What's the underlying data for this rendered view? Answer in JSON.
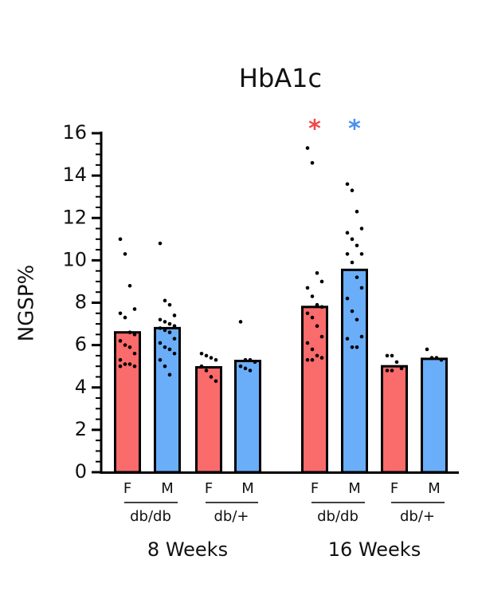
{
  "chart_data": {
    "type": "bar",
    "title": "HbA1c",
    "y_label": "NGSP%",
    "categories": [
      "F",
      "M",
      "F",
      "M",
      "F",
      "M",
      "F",
      "M"
    ],
    "groups": [
      "db/db",
      "db/+",
      "db/db",
      "db/+"
    ],
    "periods": [
      "8 Weeks",
      "16 Weeks"
    ],
    "values": [
      6.6,
      6.8,
      4.95,
      5.25,
      7.8,
      9.55,
      5.0,
      5.35
    ],
    "colors": [
      "#fa6b6b",
      "#6aaefa",
      "#fa6b6b",
      "#6aaefa",
      "#fa6b6b",
      "#6aaefa",
      "#fa6b6b",
      "#6aaefa"
    ],
    "points": [
      [
        11.0,
        10.3,
        8.8,
        7.7,
        7.5,
        7.3,
        6.6,
        6.5,
        6.2,
        6.0,
        5.9,
        5.6,
        5.3,
        5.1,
        5.1,
        5.0,
        5.0
      ],
      [
        10.8,
        8.1,
        7.9,
        7.4,
        7.2,
        7.1,
        7.0,
        6.9,
        6.8,
        6.7,
        6.6,
        6.3,
        6.1,
        5.9,
        5.8,
        5.6,
        5.3,
        5.0,
        4.6
      ],
      [
        5.6,
        5.5,
        5.4,
        5.3,
        5.0,
        4.8,
        4.5,
        4.3
      ],
      [
        7.1,
        5.3,
        5.3,
        5.2,
        5.0,
        4.9,
        4.8
      ],
      [
        15.3,
        14.6,
        9.4,
        9.0,
        8.7,
        8.3,
        7.9,
        7.8,
        7.5,
        7.3,
        6.9,
        6.4,
        6.1,
        5.8,
        5.5,
        5.4,
        5.3,
        5.3
      ],
      [
        13.6,
        13.3,
        12.3,
        11.5,
        11.3,
        11.0,
        10.7,
        10.3,
        10.3,
        9.9,
        9.2,
        8.7,
        8.2,
        7.6,
        7.2,
        6.4,
        6.3,
        5.9,
        5.9
      ],
      [
        5.5,
        5.5,
        5.2,
        4.9,
        4.8,
        4.8
      ],
      [
        5.8,
        5.4,
        5.4,
        5.3
      ]
    ],
    "annotations": [
      {
        "text": "*",
        "index": 4,
        "color": "#f04848"
      },
      {
        "text": "*",
        "index": 5,
        "color": "#4a90f0"
      }
    ],
    "ylim": [
      0,
      16
    ],
    "yticks": [
      0,
      2,
      4,
      6,
      8,
      10,
      12,
      14,
      16
    ]
  }
}
